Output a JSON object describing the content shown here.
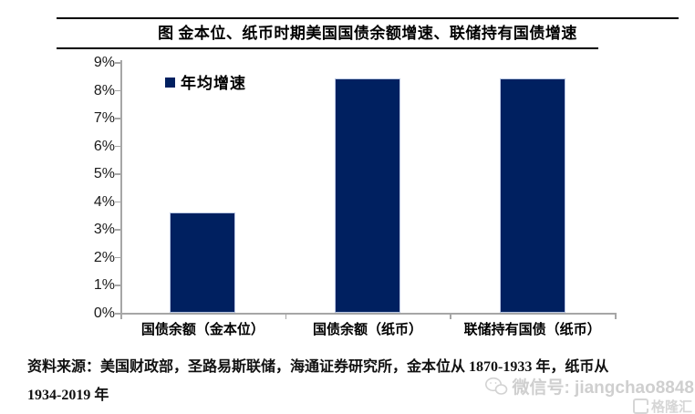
{
  "title_box": {
    "title": "图 金本位、纸币时期美国国债余额增速、联储持有国债增速"
  },
  "chart_data": {
    "type": "bar",
    "title": "图 金本位、纸币时期美国国债余额增速、联储持有国债增速",
    "categories": [
      "国债余额（金本位）",
      "国债余额（纸币）",
      "联储持有国债（纸币）"
    ],
    "series": [
      {
        "name": "年均增速",
        "values": [
          3.6,
          8.4,
          8.4
        ]
      }
    ],
    "values": [
      3.6,
      8.4,
      8.4
    ],
    "yticks": [
      "0%",
      "1%",
      "2%",
      "3%",
      "4%",
      "5%",
      "6%",
      "7%",
      "8%",
      "9%"
    ],
    "ylim": [
      0,
      9
    ],
    "xlabel": "",
    "ylabel": "",
    "grid": false,
    "legend_position": "inside-top-left",
    "legend": {
      "label": "年均增速",
      "color": "#002060"
    },
    "bar_color": "#002060",
    "axis_color": "#a6a6a6"
  },
  "footer": {
    "source_line1": "资料来源：美国财政部，圣路易斯联储，海通证券研究所，金本位从 1870-1933 年，纸币从",
    "source_line2": "1934-2019 年"
  },
  "watermark": {
    "wechat_label": "微信号: jiangchao8848",
    "logo_text": "格隆汇"
  }
}
